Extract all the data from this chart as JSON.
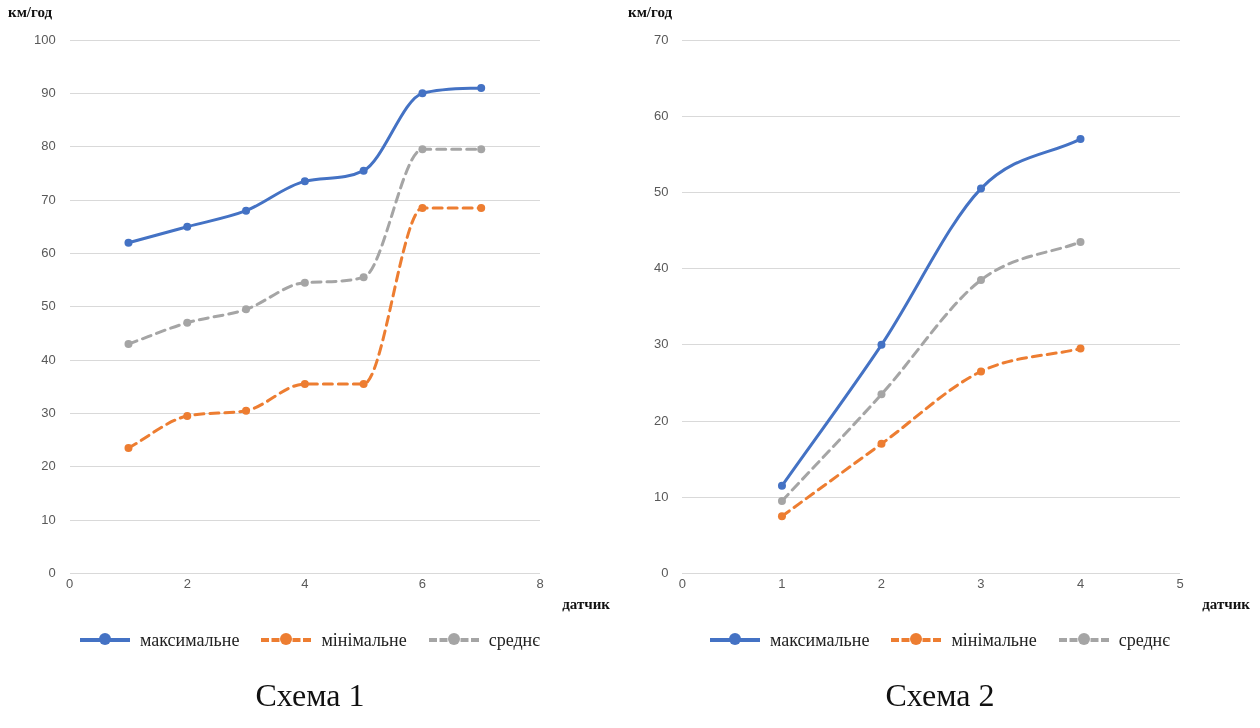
{
  "chart_data": [
    {
      "type": "line",
      "title": "Схема 1",
      "xlabel": "датчик",
      "ylabel": "км/год",
      "x": [
        1,
        2,
        3,
        4,
        5,
        6,
        7
      ],
      "series": [
        {
          "name": "максимальне",
          "color": "#4472c4",
          "line_style": "solid",
          "values": [
            62,
            65,
            68,
            73.5,
            75.5,
            90,
            91
          ]
        },
        {
          "name": "мінімальне",
          "color": "#ed7d31",
          "line_style": "dashed",
          "values": [
            23.5,
            29.5,
            30.5,
            35.5,
            35.5,
            68.5,
            68.5
          ]
        },
        {
          "name": "среднє",
          "color": "#a5a5a5",
          "line_style": "dashed",
          "values": [
            43,
            47,
            49.5,
            54.5,
            55.5,
            79.5,
            79.5
          ]
        }
      ],
      "xlim": [
        0,
        8
      ],
      "xticks": [
        0,
        2,
        4,
        6,
        8
      ],
      "ylim": [
        0,
        100
      ],
      "yticks": [
        0,
        10,
        20,
        30,
        40,
        50,
        60,
        70,
        80,
        90,
        100
      ],
      "grid": "y",
      "marker": "circle",
      "legend": "bottom"
    },
    {
      "type": "line",
      "title": "Схема 2",
      "xlabel": "датчик",
      "ylabel": "км/год",
      "x": [
        1,
        2,
        3,
        4
      ],
      "series": [
        {
          "name": "максимальне",
          "color": "#4472c4",
          "line_style": "solid",
          "values": [
            11.5,
            30,
            50.5,
            57
          ]
        },
        {
          "name": "мінімальне",
          "color": "#ed7d31",
          "line_style": "dashed",
          "values": [
            7.5,
            17,
            26.5,
            29.5
          ]
        },
        {
          "name": "среднє",
          "color": "#a5a5a5",
          "line_style": "dashed",
          "values": [
            9.5,
            23.5,
            38.5,
            43.5
          ]
        }
      ],
      "xlim": [
        0,
        5
      ],
      "xticks": [
        0,
        1,
        2,
        3,
        4,
        5
      ],
      "ylim": [
        0,
        70
      ],
      "yticks": [
        0,
        10,
        20,
        30,
        40,
        50,
        60,
        70
      ],
      "grid": "y",
      "marker": "circle",
      "legend": "bottom"
    }
  ]
}
